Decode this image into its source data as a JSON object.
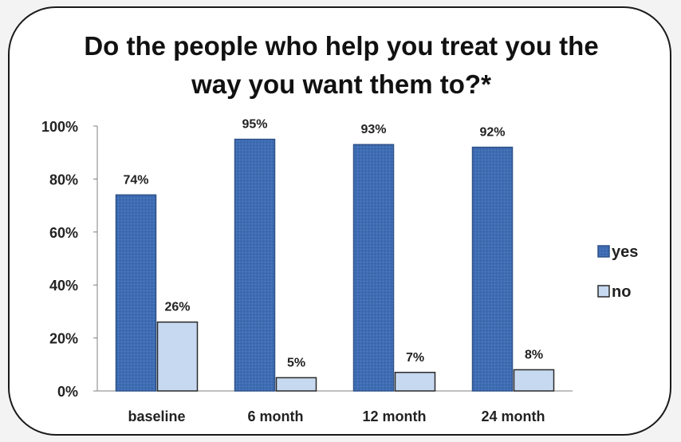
{
  "chart_data": {
    "type": "bar",
    "title": "Do the people who help you treat you the way you want them to?*",
    "categories": [
      "baseline",
      "6 month",
      "12 month",
      "24 month"
    ],
    "series": [
      {
        "name": "yes",
        "values": [
          74,
          95,
          93,
          92
        ],
        "labels": [
          "74%",
          "95%",
          "93%",
          "92%"
        ],
        "color": "#3f6db3"
      },
      {
        "name": "no",
        "values": [
          26,
          5,
          7,
          8
        ],
        "labels": [
          "26%",
          "5%",
          "7%",
          "8%"
        ],
        "color": "#c6d9f1"
      }
    ],
    "ylim": [
      0,
      100
    ],
    "yticks": [
      0,
      20,
      40,
      60,
      80,
      100
    ],
    "ytick_labels": [
      "0%",
      "20%",
      "40%",
      "60%",
      "80%",
      "100%"
    ],
    "grid": false,
    "legend": "right"
  }
}
